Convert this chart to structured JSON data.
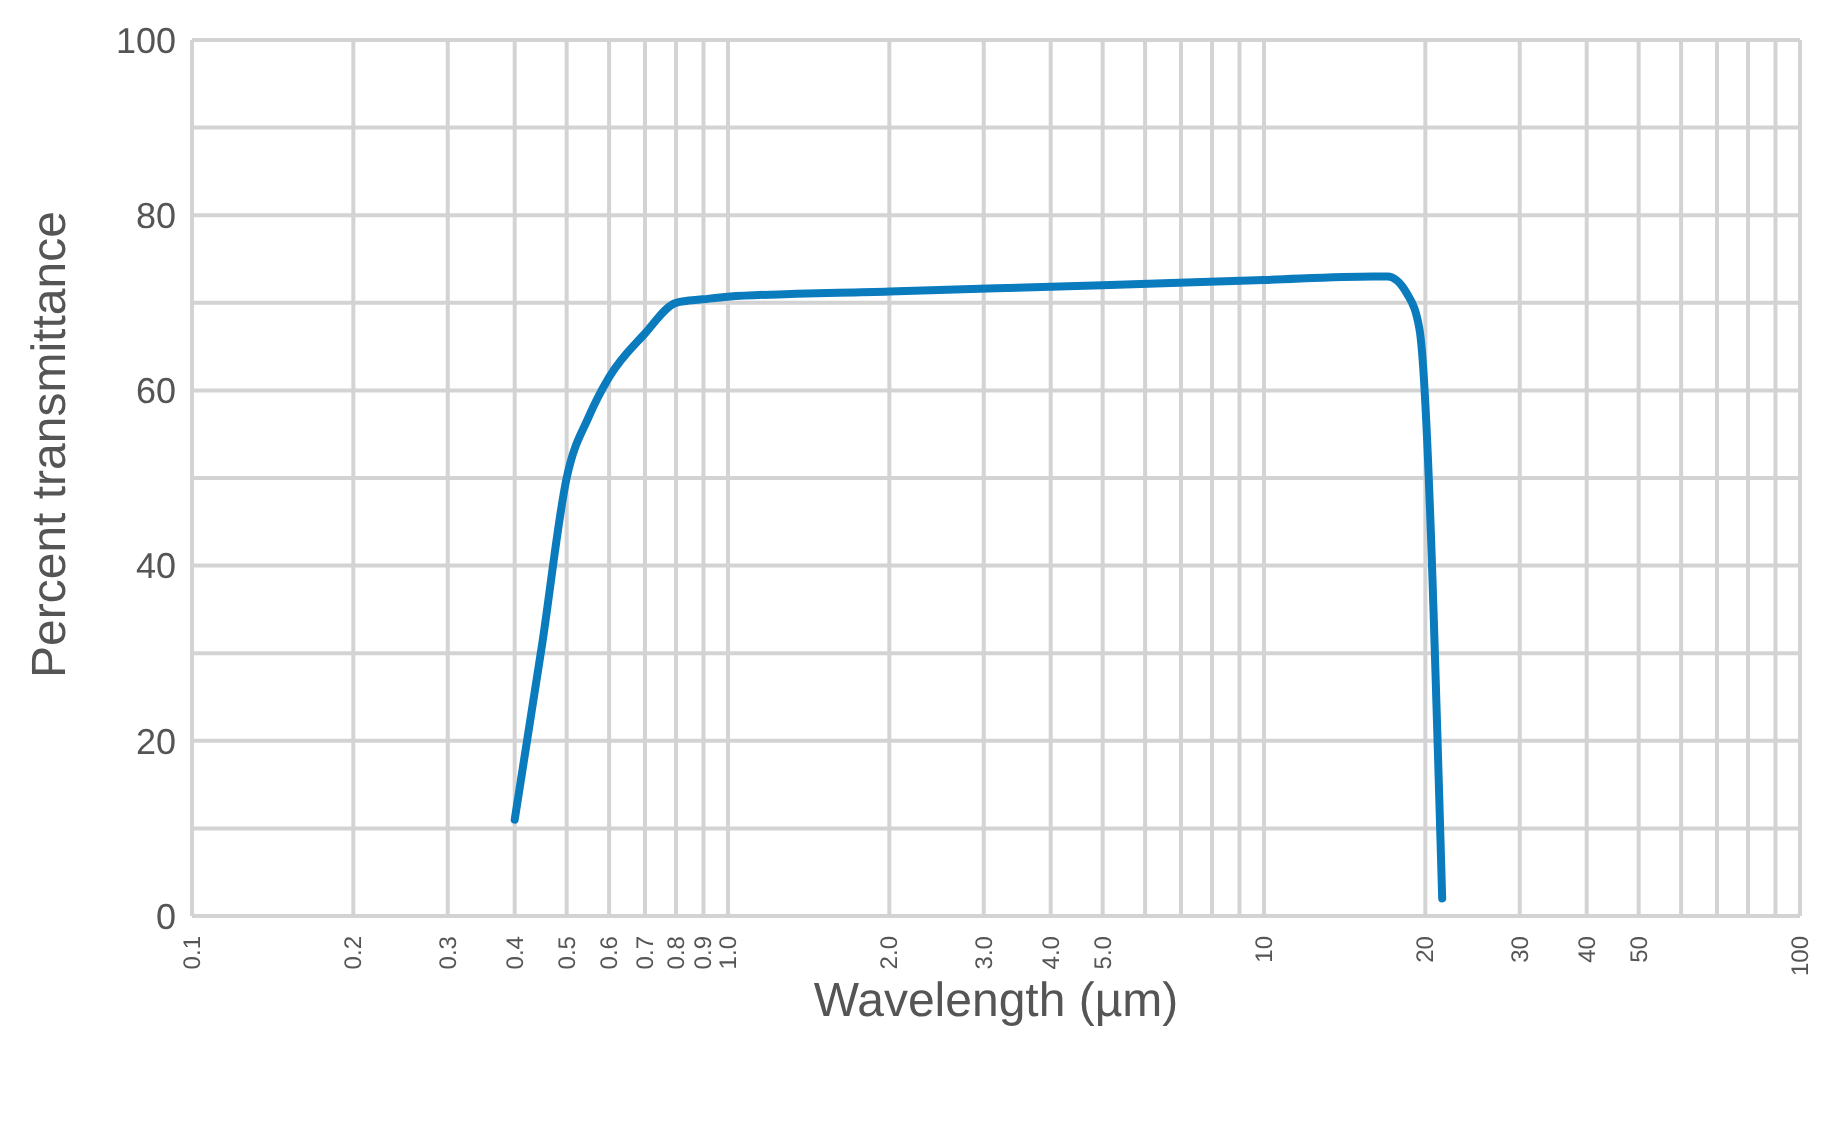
{
  "chart_data": {
    "type": "line",
    "xlabel": "Wavelength (µm)",
    "ylabel": "Percent transmittance",
    "x": [
      0.4,
      0.45,
      0.5,
      0.55,
      0.6,
      0.7,
      0.8,
      0.9,
      1.0,
      2.0,
      5.0,
      10,
      16,
      17,
      18.5,
      19.5,
      21.5
    ],
    "series": [
      {
        "color": "#0a7bbd",
        "values": [
          11,
          31,
          50,
          57,
          61.5,
          66.5,
          70,
          70.4,
          70.7,
          71.3,
          72,
          72.6,
          73,
          73,
          71,
          67,
          2
        ]
      }
    ],
    "xlim": [
      0.1,
      100
    ],
    "xticks": [
      0.1,
      0.2,
      0.3,
      0.4,
      0.5,
      0.6,
      0.7,
      0.8,
      0.9,
      {
        "value": 1,
        "label": "1.0"
      },
      {
        "value": 2,
        "label": "2.0"
      },
      {
        "value": 3,
        "label": "3.0"
      },
      {
        "value": 4,
        "label": "4.0"
      },
      {
        "value": 5,
        "label": "5.0"
      },
      {
        "value": 6,
        "label": null
      },
      {
        "value": 7,
        "label": null
      },
      {
        "value": 8,
        "label": null
      },
      {
        "value": 9,
        "label": null
      },
      10,
      20,
      30,
      40,
      50,
      {
        "value": 60,
        "label": null
      },
      {
        "value": 70,
        "label": null
      },
      {
        "value": 80,
        "label": null
      },
      {
        "value": 90,
        "label": null
      },
      100
    ],
    "ylim": [
      0,
      100
    ],
    "yticks": [
      0,
      {
        "value": 10,
        "label": null
      },
      20,
      {
        "value": 30,
        "label": null
      },
      40,
      {
        "value": 50,
        "label": null
      },
      60,
      {
        "value": 70,
        "label": null
      },
      80,
      {
        "value": 90,
        "label": null
      },
      100
    ],
    "log": "x",
    "grid": true,
    "marker": "none",
    "line_style": "solid",
    "legend": false
  }
}
